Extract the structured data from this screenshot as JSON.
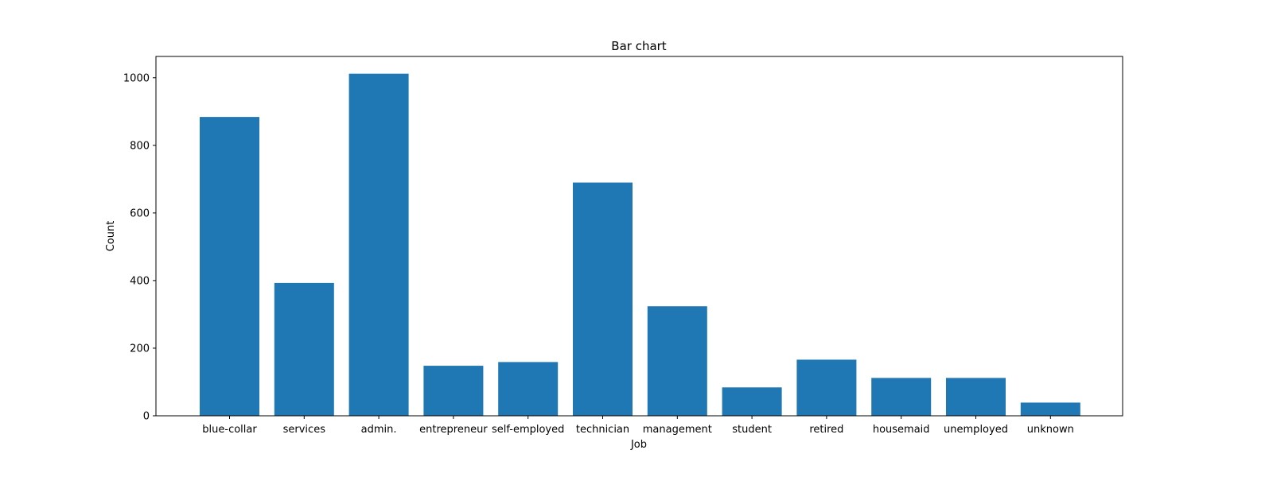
{
  "chart_data": {
    "type": "bar",
    "title": "Bar chart",
    "xlabel": "Job",
    "ylabel": "Count",
    "categories": [
      "blue-collar",
      "services",
      "admin.",
      "entrepreneur",
      "self-employed",
      "technician",
      "management",
      "student",
      "retired",
      "housemaid",
      "unemployed",
      "unknown"
    ],
    "values": [
      884,
      393,
      1012,
      148,
      159,
      690,
      324,
      84,
      166,
      112,
      112,
      39
    ],
    "ylim": [
      0,
      1063
    ],
    "yticks": [
      0,
      200,
      400,
      600,
      800,
      1000
    ],
    "grid": false,
    "bar_color": "#1f77b4"
  }
}
